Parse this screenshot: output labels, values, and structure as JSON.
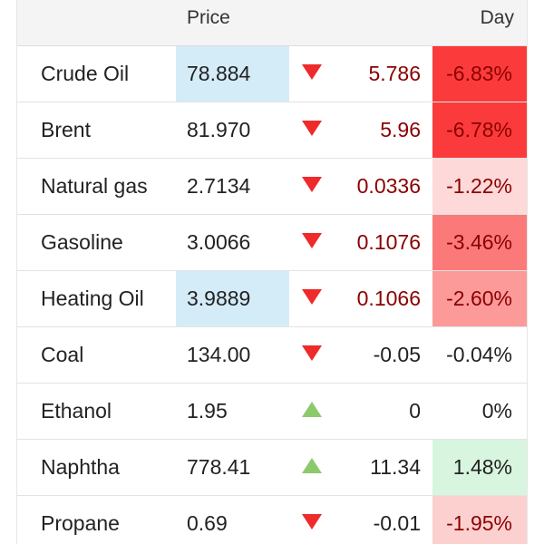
{
  "header": {
    "price_label": "Price",
    "day_label": "Day"
  },
  "colors": {
    "down_arrow": "#ee2a2a",
    "up_arrow": "#8cc96a",
    "price_highlight": "#d4ecf8",
    "loss_text": "#8b0000",
    "neutral_text": "#222222"
  },
  "rows": [
    {
      "name": "Crude Oil",
      "price": "78.884",
      "price_highlight": true,
      "direction": "down",
      "change": "5.786",
      "day": "-6.83%",
      "day_bg": "#fb3b3b",
      "change_color": "#8b0000",
      "day_color": "#8b0000"
    },
    {
      "name": "Brent",
      "price": "81.970",
      "price_highlight": false,
      "direction": "down",
      "change": "5.96",
      "day": "-6.78%",
      "day_bg": "#fb3b3b",
      "change_color": "#8b0000",
      "day_color": "#8b0000"
    },
    {
      "name": "Natural gas",
      "price": "2.7134",
      "price_highlight": false,
      "direction": "down",
      "change": "0.0336",
      "day": "-1.22%",
      "day_bg": "#fdd9d9",
      "change_color": "#8b0000",
      "day_color": "#8b0000"
    },
    {
      "name": "Gasoline",
      "price": "3.0066",
      "price_highlight": false,
      "direction": "down",
      "change": "0.1076",
      "day": "-3.46%",
      "day_bg": "#fb7979",
      "change_color": "#8b0000",
      "day_color": "#8b0000"
    },
    {
      "name": "Heating Oil",
      "price": "3.9889",
      "price_highlight": true,
      "direction": "down",
      "change": "0.1066",
      "day": "-2.60%",
      "day_bg": "#fc9a9a",
      "change_color": "#8b0000",
      "day_color": "#8b0000"
    },
    {
      "name": "Coal",
      "price": "134.00",
      "price_highlight": false,
      "direction": "down",
      "change": "-0.05",
      "day": "-0.04%",
      "day_bg": "#ffffff",
      "change_color": "#222222",
      "day_color": "#222222"
    },
    {
      "name": "Ethanol",
      "price": "1.95",
      "price_highlight": false,
      "direction": "up",
      "change": "0",
      "day": "0%",
      "day_bg": "#ffffff",
      "change_color": "#222222",
      "day_color": "#222222"
    },
    {
      "name": "Naphtha",
      "price": "778.41",
      "price_highlight": false,
      "direction": "up",
      "change": "11.34",
      "day": "1.48%",
      "day_bg": "#d8f5df",
      "change_color": "#222222",
      "day_color": "#222222"
    },
    {
      "name": "Propane",
      "price": "0.69",
      "price_highlight": false,
      "direction": "down",
      "change": "-0.01",
      "day": "-1.95%",
      "day_bg": "#fdd0d0",
      "change_color": "#222222",
      "day_color": "#8b0000"
    }
  ]
}
